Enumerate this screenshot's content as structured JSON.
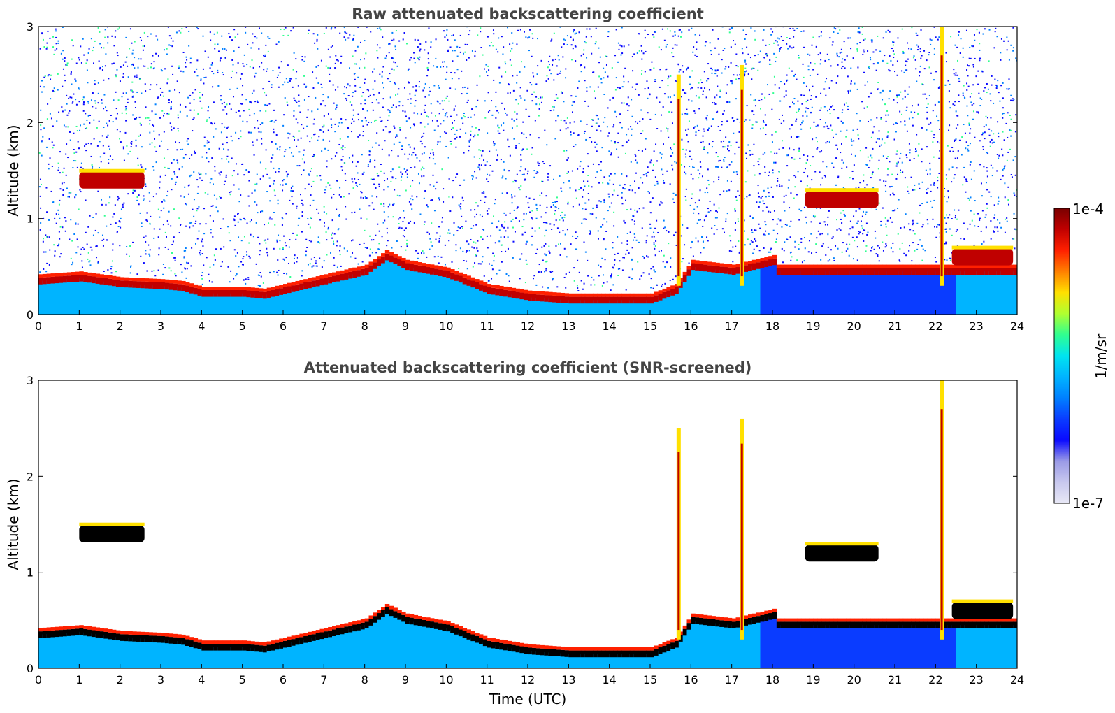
{
  "chart_data": [
    {
      "type": "heatmap",
      "title": "Raw attenuated backscattering coefficient",
      "xlabel": "",
      "ylabel": "Altitude (km)",
      "xlim": [
        0,
        24
      ],
      "ylim": [
        0,
        3
      ],
      "xticks": [
        "0",
        "1",
        "2",
        "3",
        "4",
        "5",
        "6",
        "7",
        "8",
        "9",
        "10",
        "11",
        "12",
        "13",
        "14",
        "15",
        "16",
        "17",
        "18",
        "19",
        "20",
        "21",
        "22",
        "23",
        "24"
      ],
      "yticks": [
        "0",
        "1",
        "2",
        "3"
      ],
      "features": [
        {
          "name": "boundary-layer-top",
          "x": [
            0,
            1,
            2,
            3,
            3.5,
            4,
            5,
            5.5,
            8,
            8.5,
            9,
            10,
            11,
            12,
            13,
            14,
            15,
            15.6,
            16,
            17,
            17.5,
            18
          ],
          "y": [
            0.35,
            0.38,
            0.32,
            0.3,
            0.28,
            0.22,
            0.22,
            0.2,
            0.45,
            0.6,
            0.5,
            0.42,
            0.25,
            0.18,
            0.15,
            0.15,
            0.15,
            0.25,
            0.5,
            0.45,
            0.5,
            0.55
          ]
        },
        {
          "name": "cloud-layer-1",
          "x_range": [
            1,
            2.6
          ],
          "altitude_km": 1.4
        },
        {
          "name": "cloud-layer-2",
          "x_range": [
            18.8,
            20.6
          ],
          "altitude_km": 1.2
        },
        {
          "name": "cloud-layer-3",
          "x_range": [
            22.4,
            23.9
          ],
          "altitude_km": 0.6
        }
      ]
    },
    {
      "type": "heatmap",
      "title": "Attenuated backscattering coefficient (SNR-screened)",
      "xlabel": "Time (UTC)",
      "ylabel": "Altitude (km)",
      "xlim": [
        0,
        24
      ],
      "ylim": [
        0,
        3
      ],
      "xticks": [
        "0",
        "1",
        "2",
        "3",
        "4",
        "5",
        "6",
        "7",
        "8",
        "9",
        "10",
        "11",
        "12",
        "13",
        "14",
        "15",
        "16",
        "17",
        "18",
        "19",
        "20",
        "21",
        "22",
        "23",
        "24"
      ],
      "yticks": [
        "0",
        "1",
        "2",
        "3"
      ]
    }
  ],
  "colorbar": {
    "max_label": "1e-4",
    "min_label": "1e-7",
    "unit_label": "1/m/sr",
    "scale": "log",
    "colormap": "jet",
    "colors": [
      "#e8e8f6",
      "#c8c8ee",
      "#9a9ae6",
      "#0a0aff",
      "#0a3cff",
      "#0080ff",
      "#00b4ff",
      "#00e4f0",
      "#30ff90",
      "#b0ff30",
      "#ffe000",
      "#ff8000",
      "#ff2000",
      "#c00000",
      "#7a0000"
    ]
  }
}
